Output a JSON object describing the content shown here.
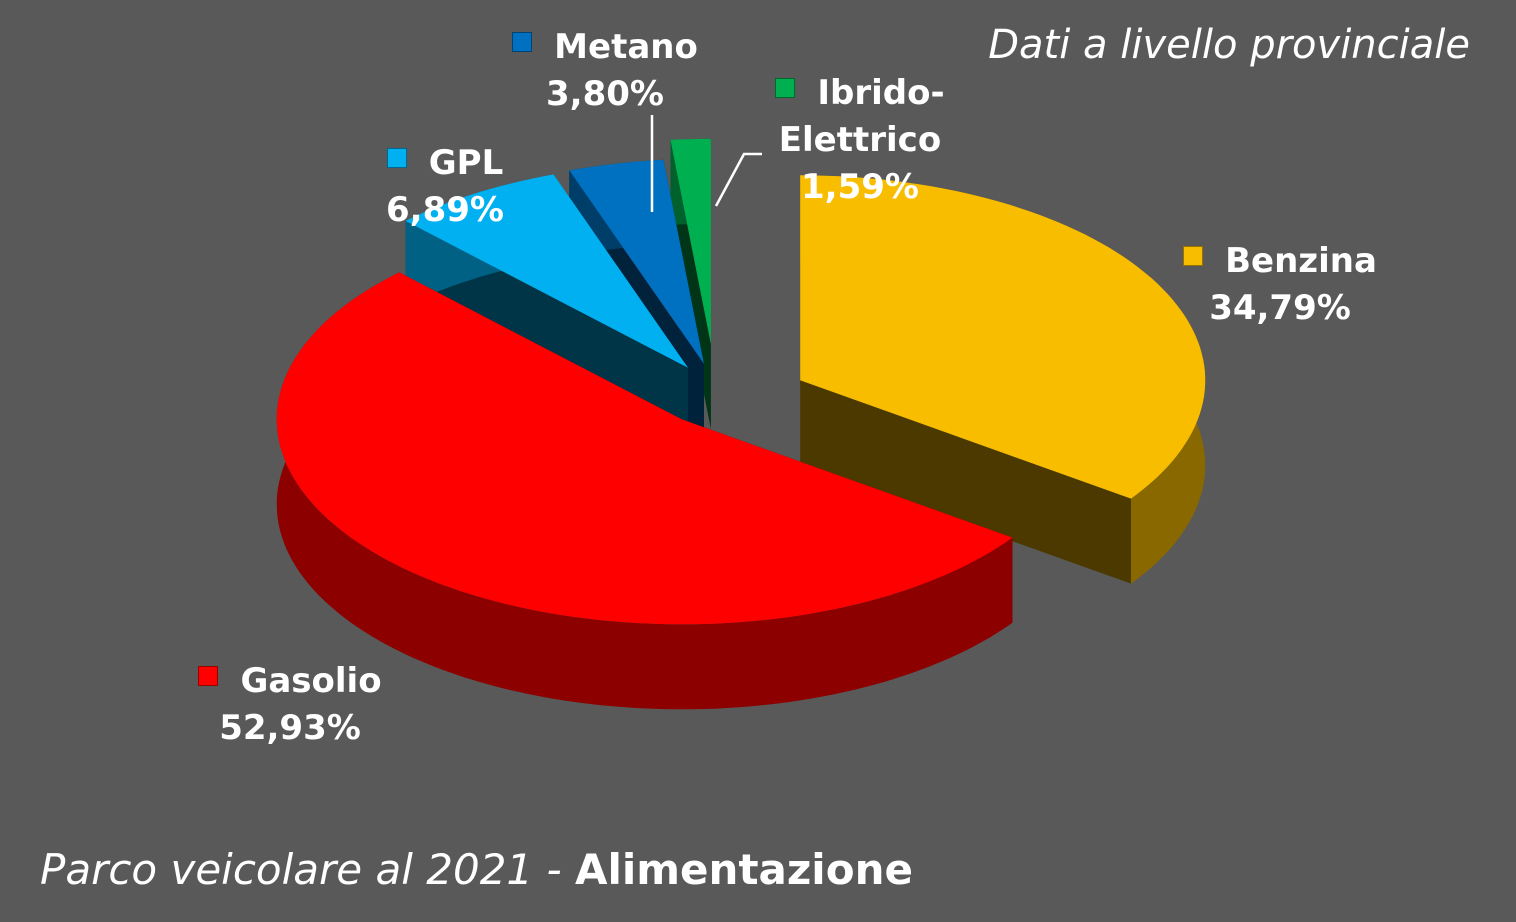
{
  "chart_data": {
    "type": "pie",
    "title": "Parco veicolare al 2021 -",
    "title_emphasis": "Alimentazione",
    "subtitle": "Dati a livello provinciale",
    "categories": [
      "Benzina",
      "Gasolio",
      "GPL",
      "Metano",
      "Ibrido-Elettrico"
    ],
    "values": [
      34.79,
      52.93,
      6.89,
      3.8,
      1.59
    ],
    "value_labels": [
      "34,79%",
      "52,93%",
      "6,89%",
      "3,80%",
      "1,59%"
    ],
    "colors": [
      "#f9bd00",
      "#ff0000",
      "#00b0f0",
      "#0070c0",
      "#00b050"
    ]
  }
}
